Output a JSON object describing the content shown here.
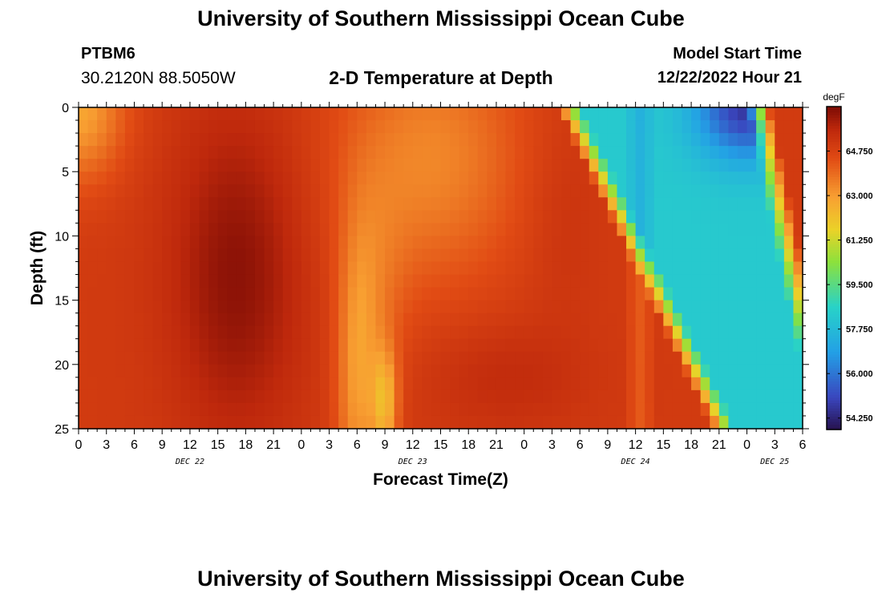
{
  "page": {
    "title": "University of Southern Mississippi Ocean Cube",
    "title_repeat": "University of Southern Mississippi Ocean Cube",
    "station": "PTBM6",
    "coords": "30.2120N  88.5050W",
    "subtitle": "2-D Temperature at Depth",
    "model_start_label": "Model Start Time",
    "model_start_value": "12/22/2022 Hour 21"
  },
  "chart_data": {
    "type": "heatmap",
    "title": "2-D Temperature at Depth",
    "xlabel": "Forecast Time(Z)",
    "ylabel": "Depth (ft)",
    "x_tick_labels": [
      "0",
      "3",
      "6",
      "9",
      "12",
      "15",
      "18",
      "21",
      "0",
      "3",
      "6",
      "9",
      "12",
      "15",
      "18",
      "21",
      "0",
      "3",
      "6",
      "9",
      "12",
      "15",
      "18",
      "21",
      "0",
      "3",
      "6"
    ],
    "x_hours_range": [
      0,
      78
    ],
    "day_labels": [
      {
        "label": "DEC 22",
        "hour": 12
      },
      {
        "label": "DEC 23",
        "hour": 36
      },
      {
        "label": "DEC 24",
        "hour": 60
      },
      {
        "label": "DEC 25",
        "hour": 75
      }
    ],
    "y_ticks": [
      0,
      5,
      10,
      15,
      20,
      25
    ],
    "ylim": [
      0,
      25
    ],
    "colorbar": {
      "unit": "degF",
      "ticks": [
        "64.750",
        "63.000",
        "61.250",
        "59.500",
        "57.750",
        "56.000",
        "54.250"
      ],
      "range": [
        53.8,
        66.5
      ]
    },
    "grid_resolution": {
      "hours_step": 1,
      "depth_step": 1
    },
    "features": [
      {
        "desc": "warm core",
        "hour": 17,
        "depth": 14,
        "value": 66.3
      },
      {
        "desc": "warm lower",
        "hour": 46,
        "depth": 21,
        "value": 65.6
      },
      {
        "desc": "cool band",
        "hour": 40,
        "depth": 5,
        "value": 61.8
      },
      {
        "desc": "cold front minimum",
        "hour": 72,
        "depth": 1,
        "value": 54.0
      }
    ]
  }
}
